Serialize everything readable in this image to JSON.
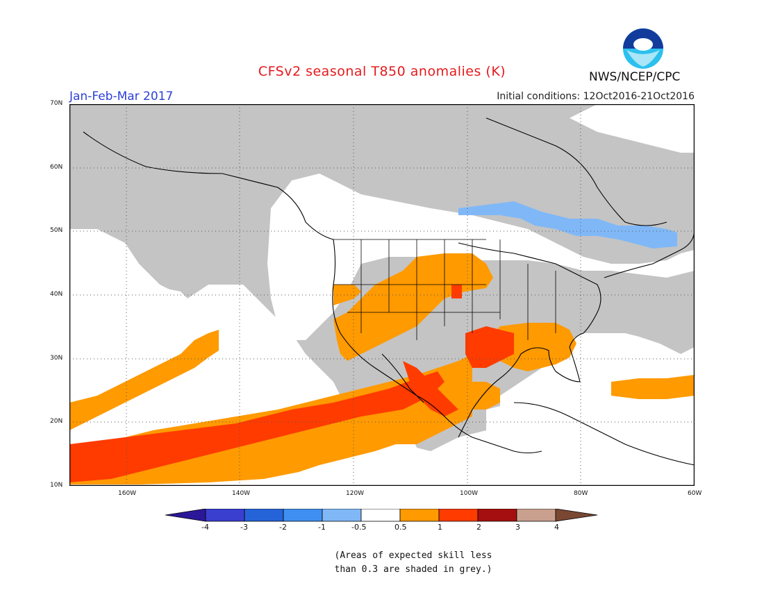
{
  "header": {
    "title": "CFSv2 seasonal T850 anomalies (K)",
    "season": "Jan-Feb-Mar 2017",
    "initial_conditions": "Initial conditions: 12Oct2016-21Oct2016",
    "agency": "NWS/NCEP/CPC",
    "logo_icon": "noaa-logo-icon"
  },
  "map": {
    "extent": {
      "lon_min": -170,
      "lon_max": -60,
      "lat_min": 10,
      "lat_max": 70
    },
    "lat_labels": [
      "70N",
      "60N",
      "50N",
      "40N",
      "30N",
      "20N",
      "10N"
    ],
    "lon_labels": [
      "160W",
      "140W",
      "120W",
      "100W",
      "80W",
      "60W"
    ],
    "colors": {
      "grey": "#c4c4c4",
      "orange": "#ff9a00",
      "red": "#ff3b00",
      "light_blue": "#80b8f7"
    }
  },
  "colorbar": {
    "labels": [
      "-4",
      "-3",
      "-2",
      "-1",
      "-0.5",
      "0.5",
      "1",
      "2",
      "3",
      "4"
    ],
    "colors": [
      "#2b1899",
      "#3a3fd0",
      "#2563d9",
      "#3f8ff1",
      "#80b8f7",
      "#ffffff",
      "#ff9a00",
      "#ff3b00",
      "#a50f0f",
      "#c9a08e",
      "#7a4733"
    ]
  },
  "note": {
    "line1": "(Areas of expected skill less",
    "line2": "than 0.3 are shaded in grey.)"
  }
}
